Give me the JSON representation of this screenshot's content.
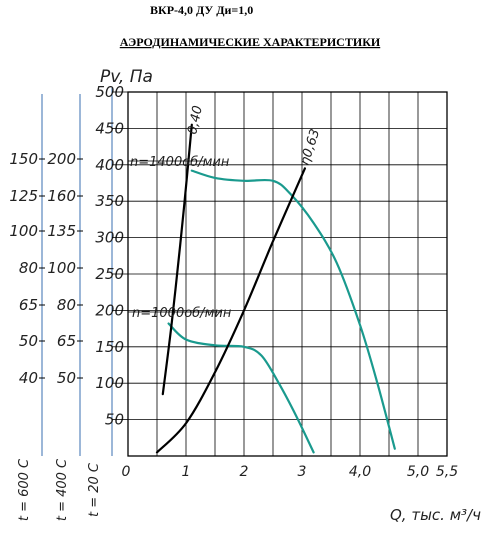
{
  "header": {
    "model": "ВКР-4,0 ДУ Ди=1,0",
    "title": "АЭРОДИНАМИЧЕСКИЕ ХАРАКТЕРИСТИКИ"
  },
  "chart_data": {
    "type": "line",
    "ylabel": "Pv, Па",
    "xlabel": "Q, тыс. м³/ч",
    "xlim": [
      0,
      5.5
    ],
    "ylim": [
      0,
      500
    ],
    "grid": true,
    "x_ticks": [
      "0",
      "1",
      "2",
      "3",
      "4,0",
      "5,0",
      "5,5"
    ],
    "y_ticks": [
      "50",
      "100",
      "150",
      "200",
      "250",
      "300",
      "350",
      "400",
      "450",
      "500"
    ],
    "temp_scales": [
      {
        "label": "t = 600 С",
        "ticks": [
          "150",
          "125",
          "100",
          "80",
          "65",
          "50",
          "40"
        ]
      },
      {
        "label": "t = 400 С",
        "ticks": [
          "200",
          "160",
          "135",
          "100",
          "80",
          "65",
          "50"
        ]
      },
      {
        "label": "t = 20 С",
        "ticks": []
      }
    ],
    "series": [
      {
        "name": "n=1400об/мин",
        "color": "#1a9a8e",
        "x": [
          1.1,
          1.5,
          2.0,
          2.5,
          2.8,
          3.2,
          3.6,
          4.0,
          4.3,
          4.6
        ],
        "y": [
          392,
          382,
          378,
          378,
          360,
          320,
          265,
          180,
          100,
          10
        ]
      },
      {
        "name": "n=1000об/мин",
        "color": "#1a9a8e",
        "x": [
          0.7,
          1.0,
          1.5,
          2.0,
          2.3,
          2.6,
          2.9,
          3.2
        ],
        "y": [
          182,
          160,
          152,
          150,
          138,
          100,
          55,
          5
        ]
      },
      {
        "name": "η0,40",
        "color": "#000000",
        "x": [
          0.6,
          0.75,
          0.9,
          1.0,
          1.1
        ],
        "y": [
          85,
          180,
          290,
          370,
          455
        ]
      },
      {
        "name": "η0,63",
        "color": "#000000",
        "x": [
          0.5,
          1.0,
          1.5,
          2.0,
          2.5,
          3.05
        ],
        "y": [
          5,
          45,
          115,
          200,
          295,
          395
        ]
      }
    ],
    "annotations": [
      "n=1400об/мин",
      "n=1000об/мин",
      "0,40",
      "η0,63"
    ]
  }
}
